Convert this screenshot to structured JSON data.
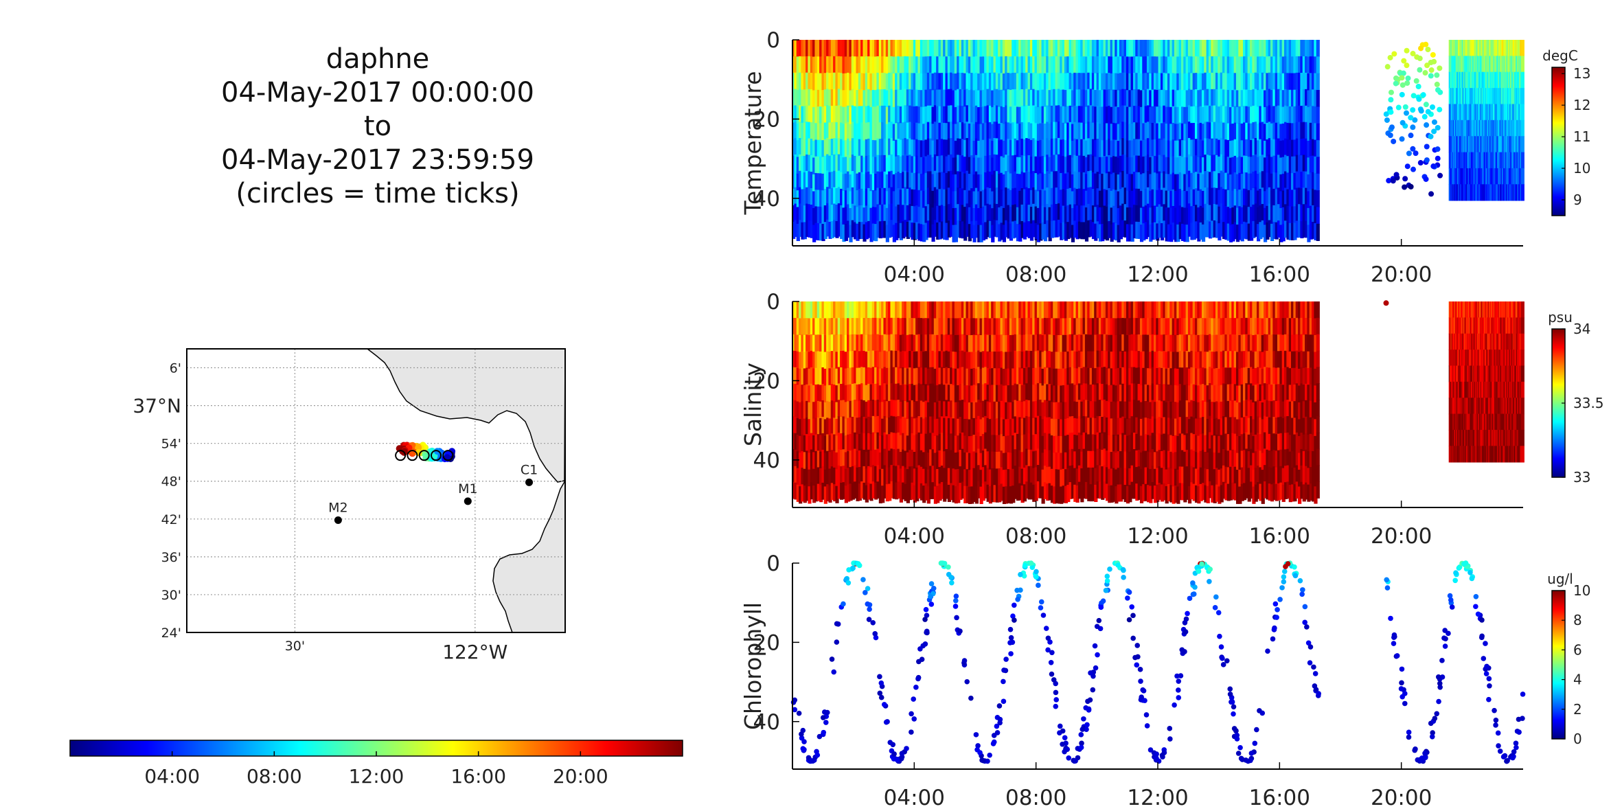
{
  "title": {
    "lines": [
      "daphne",
      "04-May-2017 00:00:00",
      "to",
      "04-May-2017 23:59:59",
      "(circles = time ticks)"
    ]
  },
  "colormap_jet": [
    "#00007f",
    "#0000ff",
    "#007fff",
    "#00ffff",
    "#7fff7f",
    "#ffff00",
    "#ff7f00",
    "#ff0000",
    "#7f0000"
  ],
  "time_colorbar": {
    "ticks": [
      "04:00",
      "08:00",
      "12:00",
      "16:00",
      "20:00"
    ],
    "tick_hours": [
      4,
      8,
      12,
      16,
      20
    ],
    "range_hours": [
      0,
      24
    ]
  },
  "map": {
    "lat_labels": [
      "6'",
      "37°N",
      "54'",
      "48'",
      "42'",
      "36'",
      "30'",
      "24'"
    ],
    "lat_values": [
      37.1,
      37.0,
      36.9,
      36.8,
      36.7,
      36.6,
      36.5,
      36.4
    ],
    "lon_labels": [
      "30'",
      "122°W"
    ],
    "lon_values": [
      -122.5,
      -122.0
    ],
    "lat_range": [
      36.4,
      37.15
    ],
    "lon_range": [
      -122.8,
      -121.75
    ],
    "stations": [
      {
        "name": "C1",
        "lon": -121.85,
        "lat": 36.797
      },
      {
        "name": "M1",
        "lon": -122.02,
        "lat": 36.747
      },
      {
        "name": "M2",
        "lon": -122.38,
        "lat": 36.697
      }
    ],
    "track": {
      "lon_start": -122.23,
      "lon_end": -122.06,
      "lat": 36.87
    }
  },
  "chart_data": [
    {
      "type": "scatter",
      "title": "",
      "ylabel": "Temperature",
      "units": "degC",
      "x_unit": "hour of 04-May-2017",
      "xlim": [
        0,
        24
      ],
      "ylim": [
        52,
        0
      ],
      "yticks": [
        0,
        20,
        40
      ],
      "xticks": [
        "04:00",
        "08:00",
        "12:00",
        "16:00",
        "20:00"
      ],
      "xtick_hours": [
        4,
        8,
        12,
        16,
        20
      ],
      "clim": [
        8.5,
        13.2
      ],
      "colorbar_ticks": [
        9,
        10,
        11,
        12,
        13
      ],
      "data_gaps_hours": [
        [
          17.3,
          19.5
        ],
        [
          21.3,
          21.6
        ]
      ],
      "profile_max_depth_m": 51,
      "surface_values": [
        [
          0,
          13
        ],
        [
          4,
          12.5
        ],
        [
          6,
          11
        ],
        [
          12,
          10.8
        ],
        [
          17,
          10.8
        ],
        [
          22,
          11.5
        ],
        [
          24,
          12
        ]
      ],
      "deep_values": [
        [
          0,
          9.2
        ],
        [
          6,
          8.9
        ],
        [
          12,
          9.0
        ],
        [
          17,
          9.0
        ],
        [
          22,
          9.1
        ],
        [
          24,
          9.2
        ]
      ]
    },
    {
      "type": "scatter",
      "title": "",
      "ylabel": "Salinity",
      "units": "psu",
      "x_unit": "hour of 04-May-2017",
      "xlim": [
        0,
        24
      ],
      "ylim": [
        52,
        0
      ],
      "yticks": [
        0,
        20,
        40
      ],
      "xticks": [
        "04:00",
        "08:00",
        "12:00",
        "16:00",
        "20:00"
      ],
      "xtick_hours": [
        4,
        8,
        12,
        16,
        20
      ],
      "clim": [
        33,
        34
      ],
      "colorbar_ticks": [
        33,
        33.5,
        34
      ],
      "data_gaps_hours": [
        [
          17.3,
          21.6
        ]
      ],
      "profile_max_depth_m": 51,
      "surface_values": [
        [
          0,
          33.55
        ],
        [
          4,
          33.7
        ],
        [
          8,
          33.8
        ],
        [
          17,
          33.8
        ],
        [
          22,
          33.8
        ],
        [
          24,
          33.85
        ]
      ],
      "deep_values": [
        [
          0,
          33.98
        ],
        [
          24,
          33.98
        ]
      ]
    },
    {
      "type": "scatter",
      "title": "",
      "ylabel": "Chlorophyll",
      "units": "ug/l",
      "x_unit": "hour of 04-May-2017",
      "xlim": [
        0,
        24
      ],
      "ylim": [
        52,
        0
      ],
      "yticks": [
        0,
        20,
        40
      ],
      "xticks": [
        "04:00",
        "08:00",
        "12:00",
        "16:00",
        "20:00"
      ],
      "xtick_hours": [
        4,
        8,
        12,
        16,
        20
      ],
      "clim": [
        0,
        10
      ],
      "colorbar_ticks": [
        0,
        2,
        4,
        6,
        8,
        10
      ],
      "data_gaps_hours": [
        [
          17.3,
          19.5
        ]
      ],
      "sample_points": 600,
      "typical_value": 0.5,
      "near_surface_value": 3.5,
      "peak_value": 9.5
    }
  ]
}
